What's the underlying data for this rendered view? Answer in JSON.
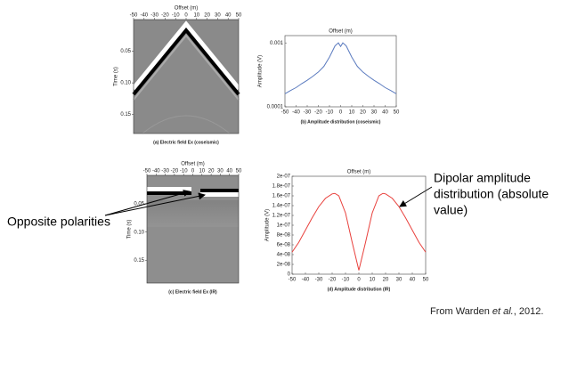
{
  "chart_data": [
    {
      "type": "line",
      "title": "Offset (m)",
      "ylabel": "Amplitude (V)",
      "caption": "(b) Amplitude distribution (coseismic)",
      "log_y": true,
      "color": "#5b7bbf",
      "x": [
        -50,
        -45,
        -40,
        -35,
        -30,
        -25,
        -20,
        -15,
        -10,
        -5,
        -2,
        0,
        2,
        5,
        10,
        15,
        20,
        25,
        30,
        35,
        40,
        45,
        50
      ],
      "values": [
        0.00016,
        0.00018,
        0.0002,
        0.00023,
        0.00026,
        0.0003,
        0.00035,
        0.00043,
        0.0006,
        0.0009,
        0.001,
        0.00088,
        0.001,
        0.0009,
        0.0006,
        0.00043,
        0.00035,
        0.0003,
        0.00026,
        0.00023,
        0.0002,
        0.00018,
        0.00016
      ],
      "xlim": [
        -50,
        50
      ],
      "xticks": [
        -50,
        -40,
        -30,
        -20,
        -10,
        0,
        10,
        20,
        30,
        40,
        50
      ],
      "ylim": [
        0.0001,
        0.0013
      ],
      "yticks": [
        0.0001,
        0.001
      ]
    },
    {
      "type": "line",
      "title": "Offset (m)",
      "ylabel": "Amplitude (V)",
      "caption": "(d) Amplitude distribution (IR)",
      "log_y": false,
      "color": "#e8403c",
      "x": [
        -50,
        -45,
        -40,
        -35,
        -30,
        -25,
        -20,
        -18,
        -15,
        -10,
        -5,
        0,
        5,
        10,
        15,
        18,
        20,
        25,
        30,
        35,
        40,
        45,
        50
      ],
      "values": [
        4.5e-08,
        6.5e-08,
        9e-08,
        1.15e-07,
        1.38e-07,
        1.55e-07,
        1.64e-07,
        1.65e-07,
        1.6e-07,
        1.25e-07,
        6.5e-08,
        8e-09,
        6.5e-08,
        1.25e-07,
        1.6e-07,
        1.65e-07,
        1.64e-07,
        1.55e-07,
        1.38e-07,
        1.15e-07,
        9e-08,
        6.5e-08,
        4.5e-08
      ],
      "xlim": [
        -50,
        50
      ],
      "xticks": [
        -50,
        -40,
        -30,
        -20,
        -10,
        0,
        10,
        20,
        30,
        40,
        50
      ],
      "ylim": [
        0,
        2e-07
      ],
      "yticks": [
        0,
        {
          "value": 2e-08,
          "label": "2e-08"
        },
        {
          "value": 4e-08,
          "label": "4e-08"
        },
        {
          "value": 6e-08,
          "label": "6e-08"
        },
        {
          "value": 8e-08,
          "label": "8e-08"
        },
        {
          "value": 1e-07,
          "label": "1e-07"
        },
        {
          "value": 1.2e-07,
          "label": "1.2e-07"
        },
        {
          "value": 1.4e-07,
          "label": "1.4e-07"
        },
        {
          "value": 1.6e-07,
          "label": "1.6e-07"
        },
        {
          "value": 1.8e-07,
          "label": "1.8e-07"
        },
        {
          "value": 2e-07,
          "label": "2e-07"
        }
      ]
    }
  ],
  "seismograms": [
    {
      "xlabel": "Offset (m)",
      "ylabel": "Time (s)",
      "caption": "(a) Electric field Ex (coseismic)",
      "xlim": [
        -50,
        50
      ],
      "xticks": [
        -50,
        -40,
        -30,
        -20,
        -10,
        0,
        10,
        20,
        30,
        40,
        50
      ],
      "ylim": [
        0.0,
        0.18
      ],
      "yticks": [
        0.05,
        {
          "value": 0.1,
          "label": "0.10"
        },
        0.15
      ]
    },
    {
      "xlabel": "Offset (m)",
      "ylabel": "Time (s)",
      "caption": "(c) Electric field Ex (IR)",
      "xlim": [
        -50,
        50
      ],
      "xticks": [
        -50,
        -40,
        -30,
        -20,
        -10,
        0,
        10,
        20,
        30,
        40,
        50
      ],
      "ylim": [
        0.0,
        0.19
      ],
      "yticks": [
        0.05,
        {
          "value": 0.1,
          "label": "0.10"
        },
        0.15
      ]
    }
  ],
  "annotations": {
    "left": "Opposite polarities",
    "right": [
      "Dipolar amplitude",
      "distribution (absolute",
      "value)"
    ]
  },
  "credit": {
    "before": "From Warden ",
    "italic": "et al.",
    "after": ", 2012."
  }
}
